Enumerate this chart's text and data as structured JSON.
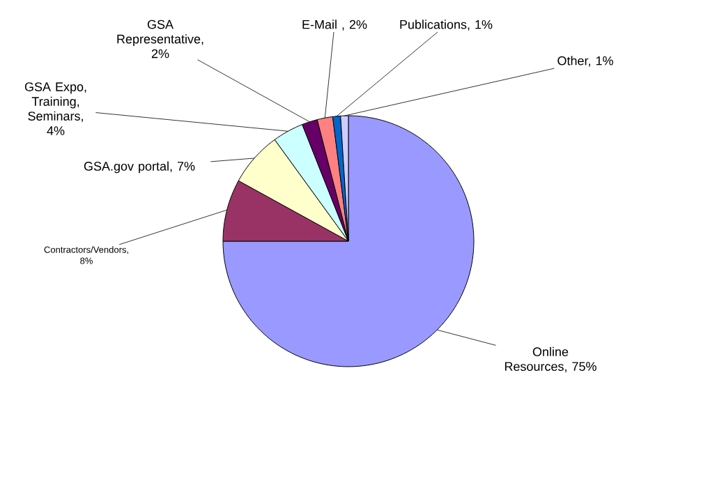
{
  "chart_data": {
    "type": "pie",
    "categories": [
      "Online Resources, 75%",
      "Contractors/Vendors, 8%",
      "GSA.gov portal, 7%",
      "GSA Expo, Training, Seminars, 4%",
      "GSA Representative, 2%",
      "E-Mail , 2%",
      "Publications, 1%",
      "Other, 1%"
    ],
    "values": [
      75,
      8,
      7,
      4,
      2,
      2,
      1,
      1
    ],
    "colors": [
      "#9999ff",
      "#993366",
      "#ffffcc",
      "#ccffff",
      "#660066",
      "#ff8080",
      "#0066cc",
      "#ccccff"
    ]
  }
}
